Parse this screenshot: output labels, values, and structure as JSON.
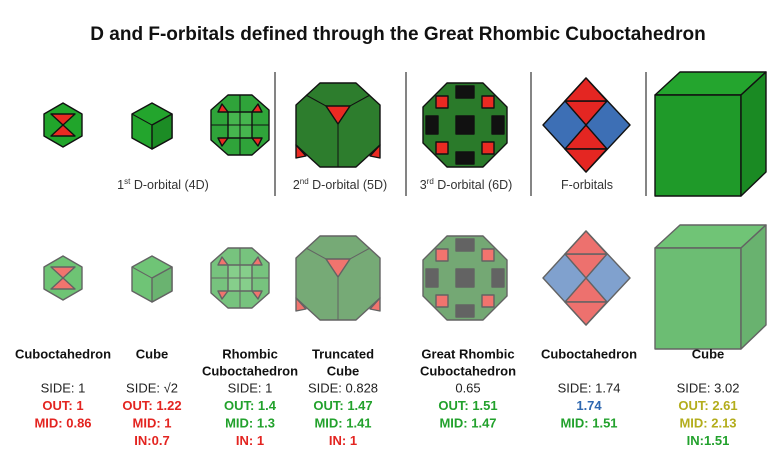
{
  "title": "D and F-orbitals defined through the Great Rhombic Cuboctahedron",
  "captions": [
    {
      "pre": "1",
      "sup": "st",
      "post": " D-orbital (4D)"
    },
    {
      "pre": "2",
      "sup": "nd",
      "post": " D-orbital (5D)"
    },
    {
      "pre": "3",
      "sup": "rd",
      "post": " D-orbital (6D)"
    },
    {
      "post": "F-orbitals"
    }
  ],
  "columns": [
    {
      "name": [
        "Cuboctahedron"
      ],
      "lines": [
        {
          "text": "SIDE: 1",
          "color": "#222222"
        },
        {
          "text": "OUT: 1",
          "color": "#e32420"
        },
        {
          "text": "MID: 0.86",
          "color": "#e32420"
        }
      ]
    },
    {
      "name": [
        "Cube"
      ],
      "lines": [
        {
          "text": "SIDE: √2",
          "color": "#222222"
        },
        {
          "text": "OUT: 1.22",
          "color": "#e32420"
        },
        {
          "text": "MID: 1",
          "color": "#e32420"
        },
        {
          "text": "IN:0.7",
          "color": "#e32420"
        }
      ]
    },
    {
      "name": [
        "Rhombic",
        "Cuboctahedron"
      ],
      "lines": [
        {
          "text": "SIDE: 1",
          "color": "#222222"
        },
        {
          "text": "OUT: 1.4",
          "color": "#22a12c"
        },
        {
          "text": "MID: 1.3",
          "color": "#22a12c"
        },
        {
          "text": "IN: 1",
          "color": "#e32420"
        }
      ]
    },
    {
      "name": [
        "Truncated",
        "Cube"
      ],
      "lines": [
        {
          "text": "SIDE: 0.828",
          "color": "#222222"
        },
        {
          "text": "OUT: 1.47",
          "color": "#22a12c"
        },
        {
          "text": "MID: 1.41",
          "color": "#22a12c"
        },
        {
          "text": "IN: 1",
          "color": "#e32420"
        }
      ]
    },
    {
      "name": [
        "Great Rhombic",
        "Cuboctahedron"
      ],
      "lines": [
        {
          "text": "0.65",
          "color": "#222222"
        },
        {
          "text": "OUT: 1.51",
          "color": "#22a12c"
        },
        {
          "text": "MID: 1.47",
          "color": "#22a12c"
        }
      ]
    },
    {
      "name": [
        "Cuboctahedron"
      ],
      "lines": [
        {
          "text": "SIDE: 1.74",
          "color": "#222222"
        },
        {
          "text": "1.74",
          "color": "#2f68b0"
        },
        {
          "text": "MID: 1.51",
          "color": "#22a12c"
        }
      ]
    },
    {
      "name": [
        "Cube"
      ],
      "lines": [
        {
          "text": "SIDE: 3.02",
          "color": "#222222"
        },
        {
          "text": "OUT: 2.61",
          "color": "#b3ad1c"
        },
        {
          "text": "MID: 2.13",
          "color": "#b3ad1c"
        },
        {
          "text": "IN:1.51",
          "color": "#22a12c"
        }
      ]
    }
  ]
}
